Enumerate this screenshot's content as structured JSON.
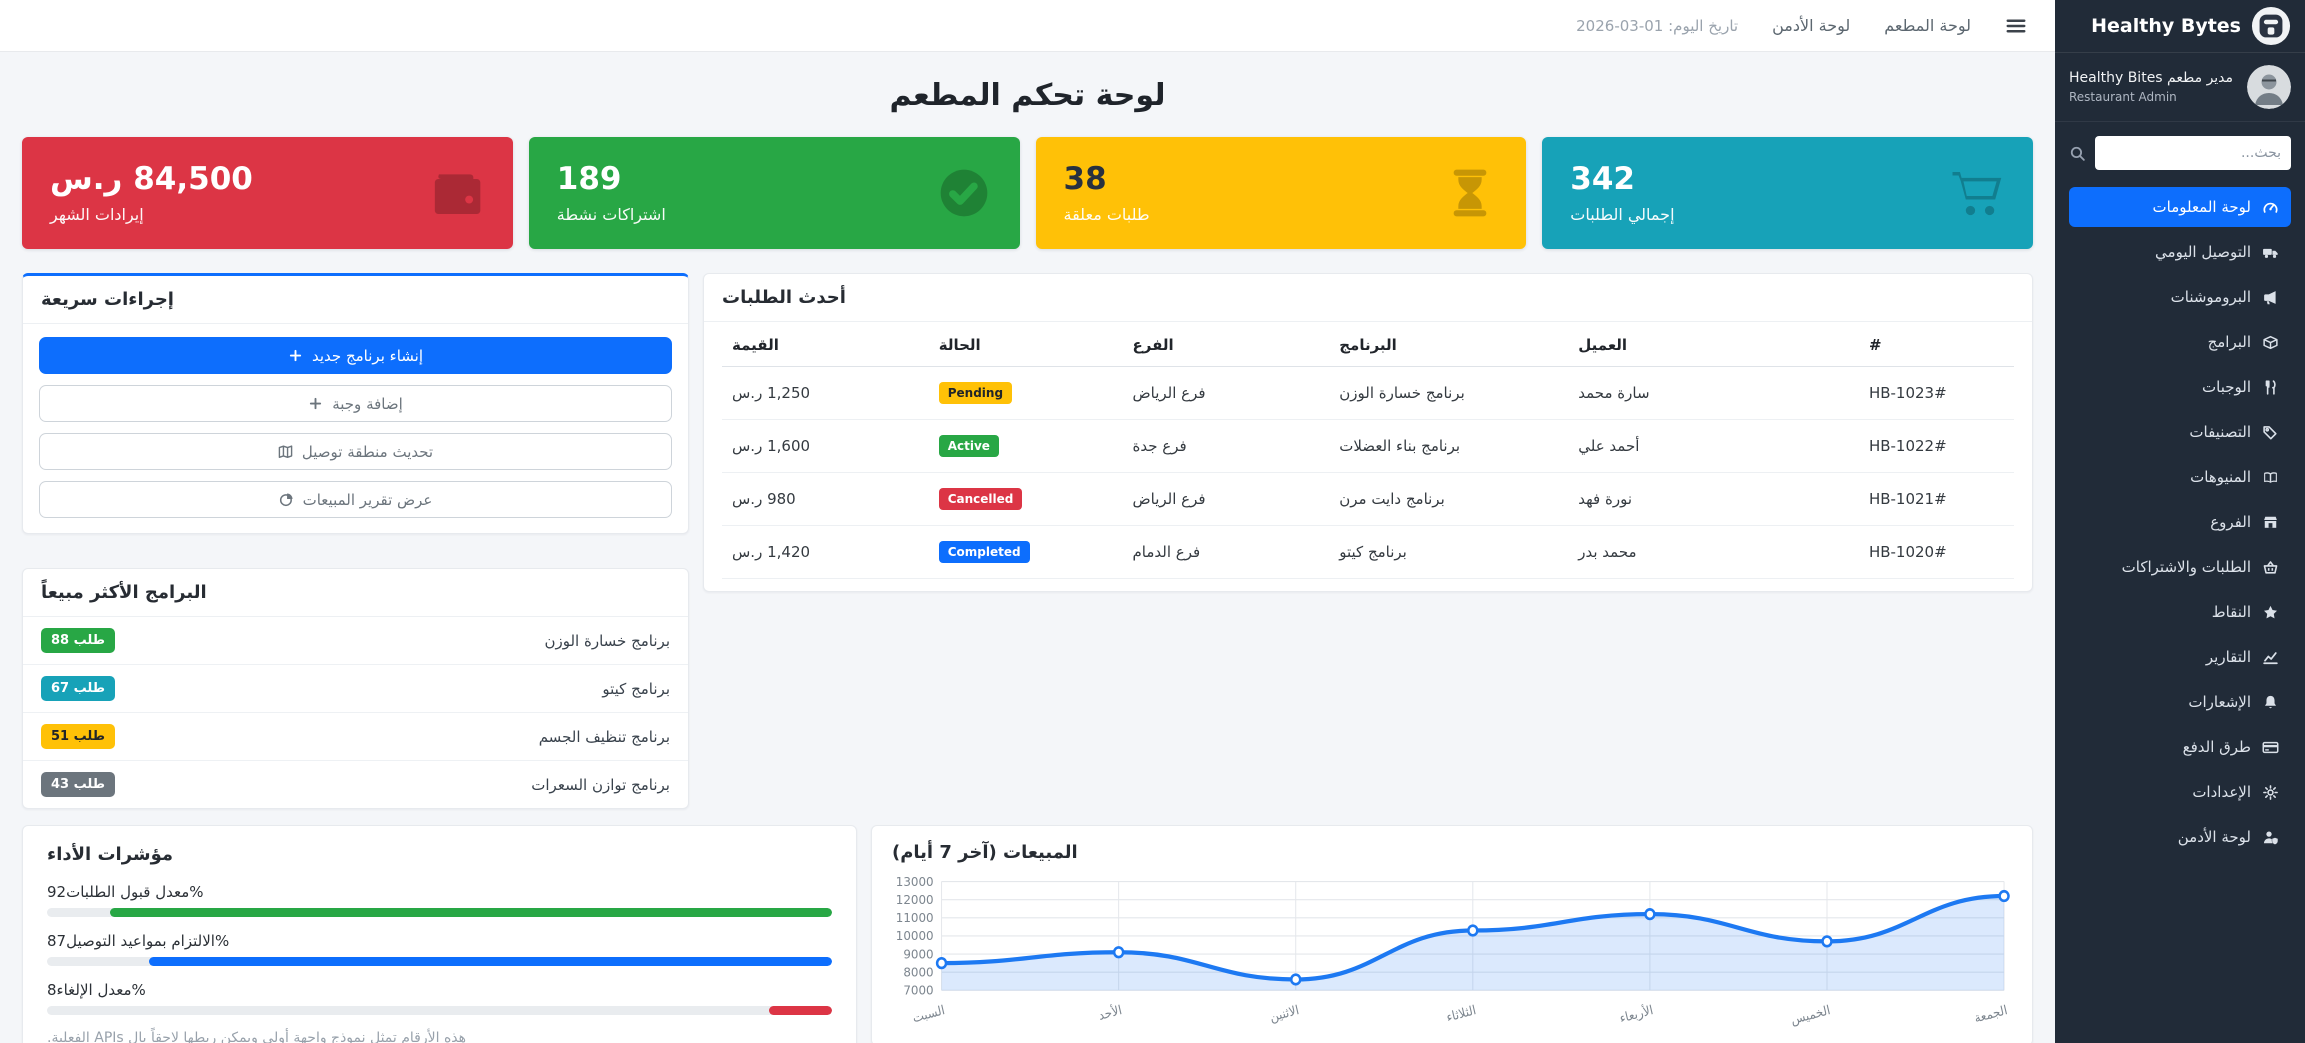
{
  "navbar": {
    "date": "تاريخ اليوم: 01-03-2026",
    "links": {
      "admin": "لوحة الأدمن",
      "restaurant": "لوحة المطعم"
    }
  },
  "sidebar": {
    "brand": "Healthy Bytes",
    "profile": {
      "name": "مدير مطعم Healthy Bites",
      "role": "Restaurant Admin"
    },
    "search_placeholder": "بحث...",
    "items": [
      {
        "label": "لوحة المعلومات",
        "icon": "dashboard-icon",
        "active": true
      },
      {
        "label": "التوصيل اليومي",
        "icon": "truck-icon"
      },
      {
        "label": "البروموشنات",
        "icon": "megaphone-icon"
      },
      {
        "label": "البرامج",
        "icon": "box-icon"
      },
      {
        "label": "الوجبات",
        "icon": "utensils-icon"
      },
      {
        "label": "التصنيفات",
        "icon": "tags-icon"
      },
      {
        "label": "المنيوهات",
        "icon": "menu-book-icon"
      },
      {
        "label": "الفروع",
        "icon": "store-icon"
      },
      {
        "label": "الطلبات والاشتراكات",
        "icon": "basket-icon"
      },
      {
        "label": "النقاط",
        "icon": "star-icon"
      },
      {
        "label": "التقارير",
        "icon": "chart-line-icon"
      },
      {
        "label": "الإشعارات",
        "icon": "bell-icon"
      },
      {
        "label": "طرق الدفع",
        "icon": "credit-card-icon"
      },
      {
        "label": "الإعدادات",
        "icon": "gear-icon"
      },
      {
        "label": "لوحة الأدمن",
        "icon": "user-shield-icon"
      }
    ]
  },
  "page_title": "لوحة تحكم المطعم",
  "stats": [
    {
      "value": "84,500 ر.س",
      "label": "إيرادات الشهر",
      "bg": "#dc3545",
      "value_color": "#ffffff",
      "icon": "wallet-icon"
    },
    {
      "value": "189",
      "label": "اشتراكات نشطة",
      "bg": "#28a745",
      "value_color": "#ffffff",
      "icon": "check-circle-icon"
    },
    {
      "value": "38",
      "label": "طلبات معلقة",
      "bg": "#ffc107",
      "value_color": "#28313f",
      "icon": "hourglass-icon"
    },
    {
      "value": "342",
      "label": "إجمالي الطلبات",
      "bg": "#17a2b8",
      "value_color": "#ffffff",
      "icon": "cart-icon"
    }
  ],
  "quick_actions": {
    "title": "إجراءات سريعة",
    "accent": "#0d6efd",
    "buttons": [
      {
        "label": "إنشاء برنامج جديد",
        "icon": "plus-icon"
      },
      {
        "label": "إضافة وجبة",
        "icon": "plus-icon"
      },
      {
        "label": "تحديث منطقة توصيل",
        "icon": "map-icon"
      },
      {
        "label": "عرض تقرير المبيعات",
        "icon": "pie-chart-icon"
      }
    ]
  },
  "orders": {
    "title": "أحدث الطلبات",
    "columns": {
      "amount": "القيمة",
      "status": "الحالة",
      "branch": "الفرع",
      "program": "البرنامج",
      "customer": "العميل",
      "id": "#"
    },
    "rows": [
      {
        "id": "#HB-1023",
        "customer": "سارة محمد",
        "program": "برنامج خسارة الوزن",
        "branch": "فرع الرياض",
        "status": "Pending",
        "badge_bg": "#ffc107",
        "badge_color": "#212529",
        "amount": "1,250 ر.س"
      },
      {
        "id": "#HB-1022",
        "customer": "أحمد علي",
        "program": "برنامج بناء العضلات",
        "branch": "فرع جدة",
        "status": "Active",
        "badge_bg": "#28a745",
        "badge_color": "#ffffff",
        "amount": "1,600 ر.س"
      },
      {
        "id": "#HB-1021",
        "customer": "نورة فهد",
        "program": "برنامج دايت مرن",
        "branch": "فرع الرياض",
        "status": "Cancelled",
        "badge_bg": "#dc3545",
        "badge_color": "#ffffff",
        "amount": "980 ر.س"
      },
      {
        "id": "#HB-1020",
        "customer": "محمد بدر",
        "program": "برنامج كيتو",
        "branch": "فرع الدمام",
        "status": "Completed",
        "badge_bg": "#0d6efd",
        "badge_color": "#ffffff",
        "amount": "1,420 ر.س"
      }
    ]
  },
  "top_programs": {
    "title": "البرامج الأكثر مبيعاً",
    "items": [
      {
        "name": "برنامج خسارة الوزن",
        "badge": "88 طلب",
        "badge_bg": "#28a745",
        "badge_color": "#ffffff"
      },
      {
        "name": "برنامج كيتو",
        "badge": "67 طلب",
        "badge_bg": "#17a2b8",
        "badge_color": "#ffffff"
      },
      {
        "name": "برنامج تنظيف الجسم",
        "badge": "51 طلب",
        "badge_bg": "#ffc107",
        "badge_color": "#212529"
      },
      {
        "name": "برنامج توازن السعرات",
        "badge": "43 طلب",
        "badge_bg": "#6c757d",
        "badge_color": "#ffffff"
      }
    ]
  },
  "performance": {
    "title": "مؤشرات الأداء",
    "metrics": [
      {
        "label": "معدل قبول الطلبات",
        "value": "92%",
        "color": "#28a745"
      },
      {
        "label": "الالتزام بمواعيد التوصيل",
        "value": "87%",
        "color": "#0d6efd"
      },
      {
        "label": "معدل الإلغاء",
        "value": "8%",
        "color": "#dc3545"
      }
    ],
    "note": "هذه الأرقام تمثل نموذج واجهة أولي ويمكن ربطها لاحقاً بال APIs الفعلية."
  },
  "chart_data": {
    "type": "line",
    "title": "المبيعات (آخر 7 أيام)",
    "x": [
      "السبت",
      "الأحد",
      "الاثنين",
      "الثلاثاء",
      "الأربعاء",
      "الخميس",
      "الجمعة"
    ],
    "series": [
      {
        "name": "المبيعات",
        "values": [
          8500,
          9100,
          7600,
          10300,
          11200,
          9700,
          12200
        ]
      }
    ],
    "ylim": [
      7000,
      13000
    ],
    "ytick": 1000,
    "grid": true,
    "legend": false,
    "line_color": "#1d79f2",
    "fill_color": "rgba(29,121,242,0.16)",
    "point_fill": "#ffffff"
  }
}
